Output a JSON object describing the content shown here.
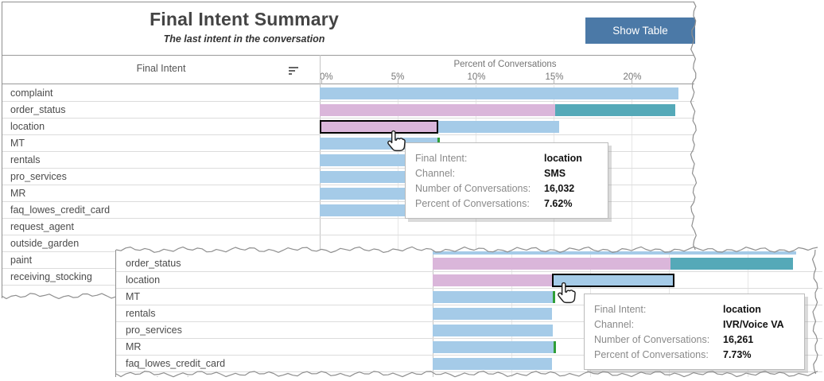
{
  "panel1": {
    "title": "Final Intent Summary",
    "subtitle": "The last intent in the conversation",
    "button": "Show Table",
    "column_header": "Final Intent",
    "axis_title": "Percent of Conversations",
    "ticks": [
      "0%",
      "5%",
      "10%",
      "15%",
      "20%"
    ],
    "tooltip": {
      "rows": [
        {
          "label": "Final Intent:",
          "value": "location"
        },
        {
          "label": "Channel:",
          "value": "SMS"
        },
        {
          "label": "Number of Conversations:",
          "value": "16,032"
        },
        {
          "label": "Percent of Conversations:",
          "value": "7.62%"
        }
      ]
    }
  },
  "panel2": {
    "tooltip": {
      "rows": [
        {
          "label": "Final Intent:",
          "value": "location"
        },
        {
          "label": "Channel:",
          "value": "IVR/Voice VA"
        },
        {
          "label": "Number of Conversations:",
          "value": "16,261"
        },
        {
          "label": "Percent of Conversations:",
          "value": "7.73%"
        }
      ]
    }
  },
  "colors": {
    "bar_blue": "#a5cbe8",
    "bar_pink": "#dab6da",
    "bar_teal": "#55a9b8",
    "bar_green": "#2f9e38",
    "button_blue": "#4b79a7",
    "highlight_border": "#000000"
  },
  "segment_color_channels": {
    "pink": "SMS",
    "blue": "IVR/Voice VA"
  },
  "chart_data": [
    {
      "type": "bar",
      "orientation": "horizontal",
      "stacked": true,
      "title": "Final Intent Summary",
      "subtitle": "The last intent in the conversation",
      "xlabel": "Percent of Conversations",
      "x_ticks": [
        "0%",
        "5%",
        "10%",
        "15%",
        "20%"
      ],
      "xlim": [
        0,
        24
      ],
      "ylabel": "Final Intent",
      "rows": [
        {
          "label": "complaint",
          "segments": [
            {
              "color": "blue",
              "pct": 23.0
            }
          ]
        },
        {
          "label": "order_status",
          "segments": [
            {
              "color": "pink",
              "pct": 15.1
            },
            {
              "color": "teal",
              "pct": 7.7
            }
          ]
        },
        {
          "label": "location",
          "segments": [
            {
              "color": "pink",
              "pct": 7.62,
              "highlighted": true
            },
            {
              "color": "blue",
              "pct": 7.73
            }
          ]
        },
        {
          "label": "MT",
          "segments": [
            {
              "color": "blue",
              "pct": 7.55
            },
            {
              "color": "green",
              "pct": 0.15
            }
          ]
        },
        {
          "label": "rentals",
          "segments": [
            {
              "color": "blue",
              "pct": 7.5
            }
          ]
        },
        {
          "label": "pro_services",
          "segments": [
            {
              "color": "blue",
              "pct": 7.5
            }
          ]
        },
        {
          "label": "MR",
          "segments": [
            {
              "color": "blue",
              "pct": 7.55
            },
            {
              "color": "green",
              "pct": 0.15
            }
          ]
        },
        {
          "label": "faq_lowes_credit_card",
          "segments": [
            {
              "color": "blue",
              "pct": 5.6
            }
          ]
        },
        {
          "label": "request_agent",
          "segments": []
        },
        {
          "label": "outside_garden",
          "segments": []
        },
        {
          "label": "paint",
          "segments": []
        },
        {
          "label": "receiving_stocking",
          "segments": []
        }
      ]
    },
    {
      "type": "bar",
      "orientation": "horizontal",
      "stacked": true,
      "partial_top_segment": {
        "color": "blue",
        "pct": 23.1
      },
      "rows": [
        {
          "label": "order_status",
          "segments": [
            {
              "color": "pink",
              "pct": 15.1
            },
            {
              "color": "teal",
              "pct": 7.8
            }
          ]
        },
        {
          "label": "location",
          "segments": [
            {
              "color": "pink",
              "pct": 7.6
            },
            {
              "color": "blue",
              "pct": 7.73,
              "highlighted": true
            }
          ]
        },
        {
          "label": "MT",
          "segments": [
            {
              "color": "blue",
              "pct": 7.65
            },
            {
              "color": "green",
              "pct": 0.15
            }
          ]
        },
        {
          "label": "rentals",
          "segments": [
            {
              "color": "blue",
              "pct": 7.6
            }
          ]
        },
        {
          "label": "pro_services",
          "segments": [
            {
              "color": "blue",
              "pct": 7.65
            }
          ]
        },
        {
          "label": "MR",
          "segments": [
            {
              "color": "blue",
              "pct": 7.7
            },
            {
              "color": "green",
              "pct": 0.15
            }
          ]
        },
        {
          "label": "faq_lowes_credit_card",
          "segments": [
            {
              "color": "blue",
              "pct": 7.6
            }
          ]
        },
        {
          "label": "request_agent",
          "segments": []
        }
      ]
    }
  ]
}
